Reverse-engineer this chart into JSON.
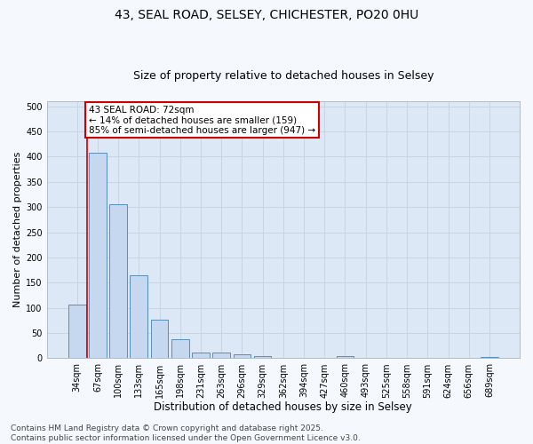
{
  "title1": "43, SEAL ROAD, SELSEY, CHICHESTER, PO20 0HU",
  "title2": "Size of property relative to detached houses in Selsey",
  "xlabel": "Distribution of detached houses by size in Selsey",
  "ylabel": "Number of detached properties",
  "categories": [
    "34sqm",
    "67sqm",
    "100sqm",
    "133sqm",
    "165sqm",
    "198sqm",
    "231sqm",
    "263sqm",
    "296sqm",
    "329sqm",
    "362sqm",
    "394sqm",
    "427sqm",
    "460sqm",
    "493sqm",
    "525sqm",
    "558sqm",
    "591sqm",
    "624sqm",
    "656sqm",
    "689sqm"
  ],
  "values": [
    107,
    408,
    305,
    165,
    76,
    37,
    12,
    11,
    8,
    5,
    0,
    0,
    0,
    4,
    0,
    0,
    0,
    0,
    0,
    0,
    3
  ],
  "bar_color": "#c5d8f0",
  "bar_edge_color": "#5b8db8",
  "vline_x_index": 1,
  "vline_color": "#cc0000",
  "annotation_text": "43 SEAL ROAD: 72sqm\n← 14% of detached houses are smaller (159)\n85% of semi-detached houses are larger (947) →",
  "annotation_box_color": "#ffffff",
  "annotation_box_edge_color": "#cc0000",
  "ylim": [
    0,
    510
  ],
  "yticks": [
    0,
    50,
    100,
    150,
    200,
    250,
    300,
    350,
    400,
    450,
    500
  ],
  "grid_color": "#c8d4e0",
  "plot_bg_color": "#dce8f5",
  "fig_bg_color": "#f5f8fc",
  "footer1": "Contains HM Land Registry data © Crown copyright and database right 2025.",
  "footer2": "Contains public sector information licensed under the Open Government Licence v3.0.",
  "title1_fontsize": 10,
  "title2_fontsize": 9,
  "tick_fontsize": 7,
  "xlabel_fontsize": 8.5,
  "ylabel_fontsize": 8,
  "footer_fontsize": 6.5,
  "annotation_fontsize": 7.5
}
